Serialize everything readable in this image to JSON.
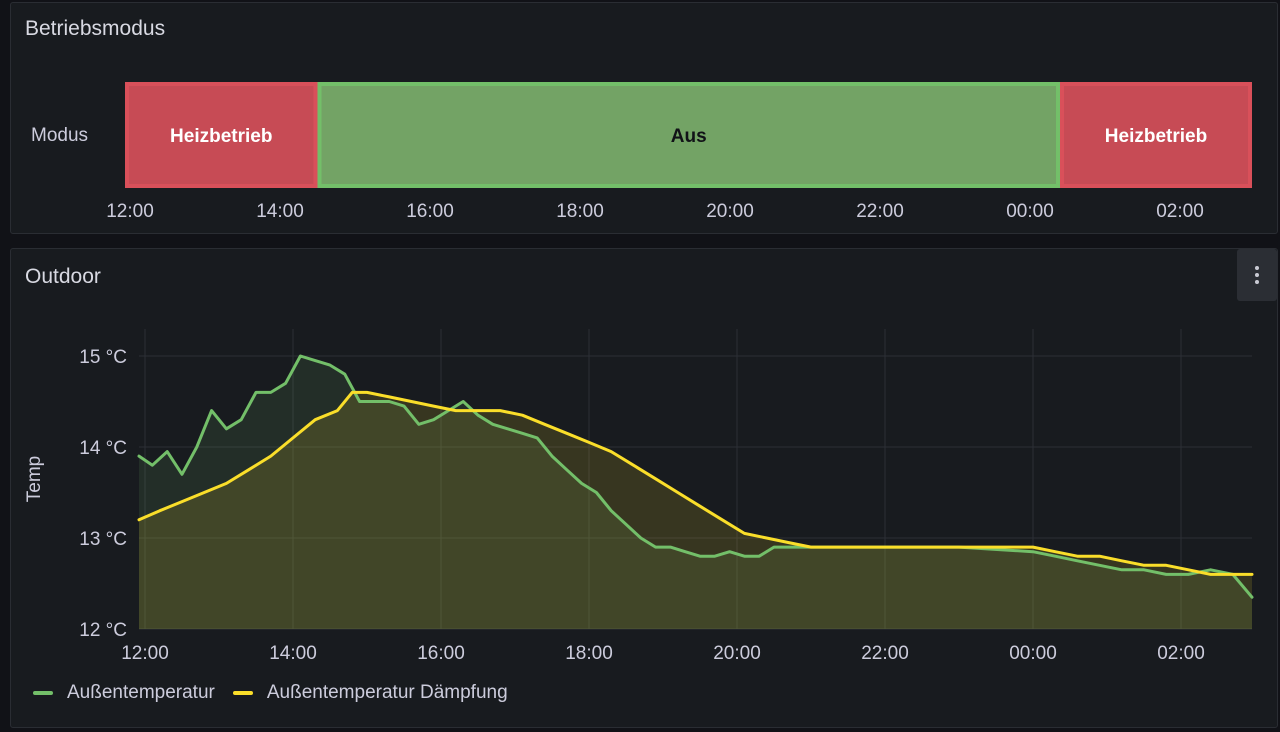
{
  "panels": {
    "state": {
      "title": "Betriebsmodus"
    },
    "outdoor": {
      "title": "Outdoor"
    }
  },
  "chart_data": [
    {
      "type": "state-timeline",
      "row_label": "Modus",
      "x_ticks": [
        "12:00",
        "14:00",
        "16:00",
        "18:00",
        "20:00",
        "22:00",
        "00:00",
        "02:00"
      ],
      "segments": [
        {
          "label": "Heizbetrieb",
          "start": 11.9,
          "end": 14.5,
          "color": "#d9505a"
        },
        {
          "label": "Aus",
          "start": 14.5,
          "end": 24.4,
          "color": "#73bf69"
        },
        {
          "label": "Heizbetrieb",
          "start": 24.4,
          "end": 27.0,
          "color": "#d9505a"
        }
      ],
      "x_range": [
        11.9,
        27.0
      ]
    },
    {
      "type": "line",
      "ylabel": "Temp",
      "y_ticks": [
        "12 °C",
        "13 °C",
        "14 °C",
        "15 °C"
      ],
      "ylim": [
        12,
        15.3
      ],
      "x_ticks": [
        "12:00",
        "14:00",
        "16:00",
        "18:00",
        "20:00",
        "22:00",
        "00:00",
        "02:00"
      ],
      "x_range": [
        11.9,
        27.0
      ],
      "series": [
        {
          "name": "Außentemperatur",
          "color": "#73bf69",
          "x": [
            11.9,
            12.1,
            12.3,
            12.5,
            12.7,
            12.9,
            13.1,
            13.3,
            13.5,
            13.7,
            13.9,
            14.1,
            14.3,
            14.5,
            14.7,
            14.9,
            15.1,
            15.3,
            15.5,
            15.7,
            15.9,
            16.1,
            16.3,
            16.5,
            16.7,
            16.9,
            17.1,
            17.3,
            17.5,
            17.7,
            17.9,
            18.1,
            18.3,
            18.5,
            18.7,
            18.9,
            19.1,
            19.3,
            19.5,
            19.7,
            19.9,
            20.1,
            20.3,
            20.5,
            20.7,
            20.9,
            21.1,
            22.0,
            23.0,
            24.0,
            24.3,
            24.6,
            24.9,
            25.2,
            25.5,
            25.8,
            26.1,
            26.4,
            26.7,
            27.0
          ],
          "y": [
            13.9,
            13.8,
            13.95,
            13.7,
            14.0,
            14.4,
            14.2,
            14.3,
            14.6,
            14.6,
            14.7,
            15.0,
            14.95,
            14.9,
            14.8,
            14.5,
            14.5,
            14.5,
            14.45,
            14.25,
            14.3,
            14.4,
            14.5,
            14.35,
            14.25,
            14.2,
            14.15,
            14.1,
            13.9,
            13.75,
            13.6,
            13.5,
            13.3,
            13.15,
            13.0,
            12.9,
            12.9,
            12.85,
            12.8,
            12.8,
            12.85,
            12.8,
            12.8,
            12.9,
            12.9,
            12.9,
            12.9,
            12.9,
            12.9,
            12.85,
            12.8,
            12.75,
            12.7,
            12.65,
            12.65,
            12.6,
            12.6,
            12.65,
            12.6,
            12.35
          ]
        },
        {
          "name": "Außentemperatur Dämpfung",
          "color": "#fade2a",
          "x": [
            11.9,
            12.2,
            12.5,
            12.8,
            13.1,
            13.4,
            13.7,
            14.0,
            14.3,
            14.6,
            14.8,
            15.0,
            15.3,
            15.6,
            15.9,
            16.2,
            16.5,
            16.8,
            17.1,
            17.4,
            17.7,
            18.0,
            18.3,
            18.6,
            18.9,
            19.2,
            19.5,
            19.8,
            20.1,
            20.4,
            20.7,
            21.0,
            22.0,
            23.0,
            24.0,
            24.3,
            24.6,
            24.9,
            25.2,
            25.5,
            25.8,
            26.1,
            26.4,
            26.7,
            27.0
          ],
          "y": [
            13.2,
            13.3,
            13.4,
            13.5,
            13.6,
            13.75,
            13.9,
            14.1,
            14.3,
            14.4,
            14.6,
            14.6,
            14.55,
            14.5,
            14.45,
            14.4,
            14.4,
            14.4,
            14.35,
            14.25,
            14.15,
            14.05,
            13.95,
            13.8,
            13.65,
            13.5,
            13.35,
            13.2,
            13.05,
            13.0,
            12.95,
            12.9,
            12.9,
            12.9,
            12.9,
            12.85,
            12.8,
            12.8,
            12.75,
            12.7,
            12.7,
            12.65,
            12.6,
            12.6,
            12.6
          ]
        }
      ]
    }
  ]
}
